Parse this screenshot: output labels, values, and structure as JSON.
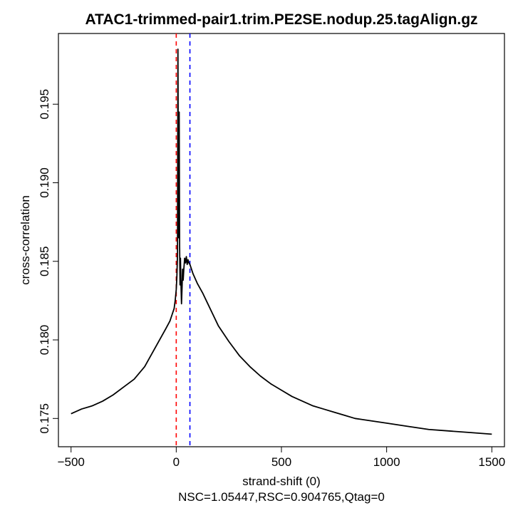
{
  "chart_data": {
    "type": "line",
    "title": "ATAC1-trimmed-pair1.trim.PE2SE.nodup.25.tagAlign.gz",
    "xlabel": "strand-shift (0)",
    "ylabel": "cross-correlation",
    "subtitle": "NSC=1.05447,RSC=0.904765,Qtag=0",
    "xlim": [
      -560,
      1560
    ],
    "ylim": [
      0.1732,
      0.1995
    ],
    "x_ticks": [
      -500,
      0,
      500,
      1000,
      1500
    ],
    "x_tick_labels": [
      "−500",
      "0",
      "500",
      "1000",
      "1500"
    ],
    "y_ticks": [
      0.175,
      0.18,
      0.185,
      0.19,
      0.195
    ],
    "y_tick_labels": [
      "0.175",
      "0.180",
      "0.185",
      "0.190",
      "0.195"
    ],
    "grid": false,
    "vlines": [
      {
        "x": 0,
        "color": "#ff0000",
        "style": "dashed"
      },
      {
        "x": 65,
        "color": "#0000ff",
        "style": "dashed"
      }
    ],
    "series": [
      {
        "color": "#000000",
        "x": [
          -500,
          -450,
          -400,
          -350,
          -300,
          -250,
          -200,
          -150,
          -100,
          -75,
          -50,
          -30,
          -20,
          -10,
          -5,
          0,
          3,
          6,
          8,
          10,
          12,
          14,
          16,
          18,
          20,
          22,
          25,
          28,
          30,
          33,
          36,
          40,
          44,
          48,
          52,
          56,
          60,
          65,
          70,
          80,
          100,
          125,
          150,
          175,
          200,
          250,
          300,
          350,
          400,
          450,
          500,
          550,
          600,
          650,
          700,
          750,
          800,
          850,
          900,
          1000,
          1100,
          1200,
          1300,
          1400,
          1500
        ],
        "y": [
          0.1753,
          0.1756,
          0.1758,
          0.1761,
          0.1765,
          0.177,
          0.1775,
          0.1783,
          0.1795,
          0.1801,
          0.1807,
          0.1812,
          0.1816,
          0.182,
          0.1825,
          0.1832,
          0.184,
          0.1855,
          0.1985,
          0.1905,
          0.1865,
          0.1945,
          0.186,
          0.1835,
          0.1852,
          0.1838,
          0.1823,
          0.1835,
          0.1845,
          0.1838,
          0.1845,
          0.1852,
          0.1849,
          0.1853,
          0.1848,
          0.1851,
          0.1849,
          0.1848,
          0.1846,
          0.1842,
          0.1836,
          0.183,
          0.1823,
          0.1816,
          0.1809,
          0.1799,
          0.179,
          0.1783,
          0.1777,
          0.1772,
          0.1768,
          0.1764,
          0.1761,
          0.1758,
          0.1756,
          0.1754,
          0.1752,
          0.175,
          0.1749,
          0.1747,
          0.1745,
          0.1743,
          0.1742,
          0.1741,
          0.174
        ]
      }
    ]
  }
}
